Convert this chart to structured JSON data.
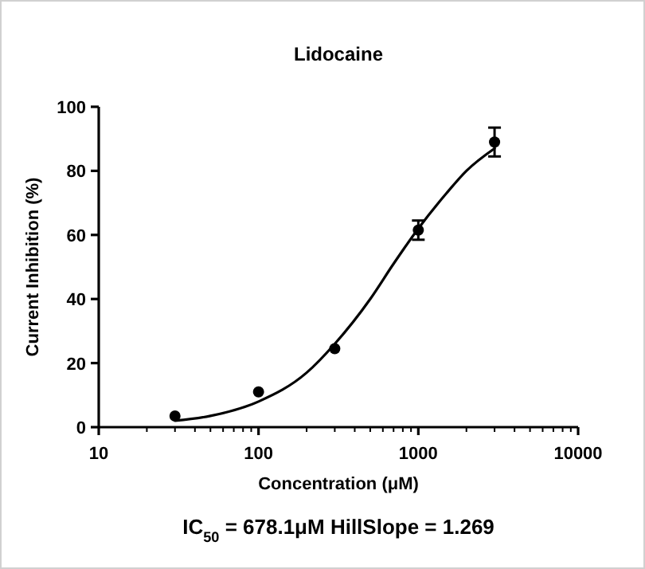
{
  "chart_data": {
    "type": "scatter",
    "title": "Lidocaine",
    "xlabel": "Concentration (μM)",
    "ylabel": "Current Inhibition (%)",
    "annotations": [
      "IC$_{50}$ = 678.1μM HillSlope = 1.269"
    ],
    "log": "x",
    "xlim": [
      10,
      10000
    ],
    "xticks": [
      10,
      100,
      1000,
      10000
    ],
    "ylim": [
      0,
      100
    ],
    "yticks": [
      0,
      20,
      40,
      60,
      80,
      100
    ],
    "grid": false,
    "series": [
      {
        "color": "#000000",
        "marker": "circle",
        "x": [
          30,
          100,
          300,
          1000,
          3000
        ],
        "values": [
          3.5,
          11,
          24.5,
          61.5,
          89
        ],
        "errors": [
          null,
          null,
          null,
          3,
          4.5
        ]
      },
      {
        "type": "line",
        "color": "#000000",
        "line_style": "solid",
        "x": [
          30,
          50,
          100,
          200,
          300,
          500,
          700,
          1000,
          1500,
          2000,
          3000
        ],
        "values": [
          2,
          3.5,
          8,
          17,
          26,
          40,
          51,
          62,
          73,
          80,
          87
        ]
      }
    ]
  }
}
